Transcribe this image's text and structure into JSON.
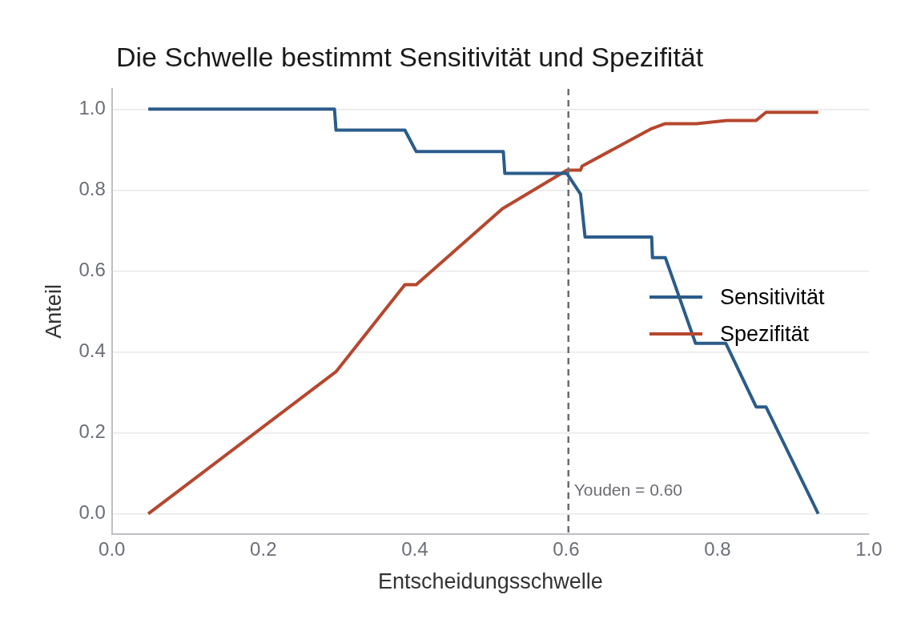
{
  "chart_data": {
    "type": "line",
    "title": "Die Schwelle bestimmt Sensitivität und Spezifität",
    "xlabel": "Entscheidungsschwelle",
    "ylabel": "Anteil",
    "series": [
      {
        "name": "Sensitivität",
        "color": "#2b5c8a",
        "x": [
          0.048,
          0.294,
          0.296,
          0.387,
          0.402,
          0.517,
          0.519,
          0.601,
          0.619,
          0.625,
          0.713,
          0.714,
          0.731,
          0.771,
          0.811,
          0.851,
          0.864,
          0.933
        ],
        "values": [
          1.0,
          1.0,
          0.948,
          0.948,
          0.895,
          0.895,
          0.841,
          0.841,
          0.79,
          0.684,
          0.684,
          0.633,
          0.633,
          0.421,
          0.421,
          0.264,
          0.264,
          0.0
        ]
      },
      {
        "name": "Spezifität",
        "color": "#b5472e",
        "x": [
          0.048,
          0.296,
          0.387,
          0.402,
          0.516,
          0.601,
          0.619,
          0.621,
          0.713,
          0.731,
          0.772,
          0.812,
          0.851,
          0.864,
          0.933
        ],
        "values": [
          0.0,
          0.351,
          0.566,
          0.566,
          0.754,
          0.849,
          0.849,
          0.859,
          0.952,
          0.964,
          0.964,
          0.972,
          0.972,
          0.992,
          0.992
        ]
      }
    ],
    "xlim": [
      0,
      1
    ],
    "xticks": [
      {
        "value": 0,
        "label": "0.0"
      },
      {
        "value": 0.2,
        "label": "0.2"
      },
      {
        "value": 0.4,
        "label": "0.4"
      },
      {
        "value": 0.6,
        "label": "0.6"
      },
      {
        "value": 0.8,
        "label": "0.8"
      },
      {
        "value": 1,
        "label": "1.0"
      }
    ],
    "ylim": [
      -0.05,
      1.05
    ],
    "yticks": [
      {
        "value": 0,
        "label": "0.0"
      },
      {
        "value": 0.2,
        "label": "0.2"
      },
      {
        "value": 0.4,
        "label": "0.4"
      },
      {
        "value": 0.6,
        "label": "0.6"
      },
      {
        "value": 0.8,
        "label": "0.8"
      },
      {
        "value": 1,
        "label": "1.0"
      }
    ],
    "ref_lines": [
      {
        "axis": "x",
        "value": 0.603,
        "label": "Youden = 0.60",
        "color": "#6b6b73",
        "line_style": "dashed"
      }
    ],
    "grid": "y",
    "legend": "right",
    "marker": "none",
    "line_style": "solid"
  }
}
